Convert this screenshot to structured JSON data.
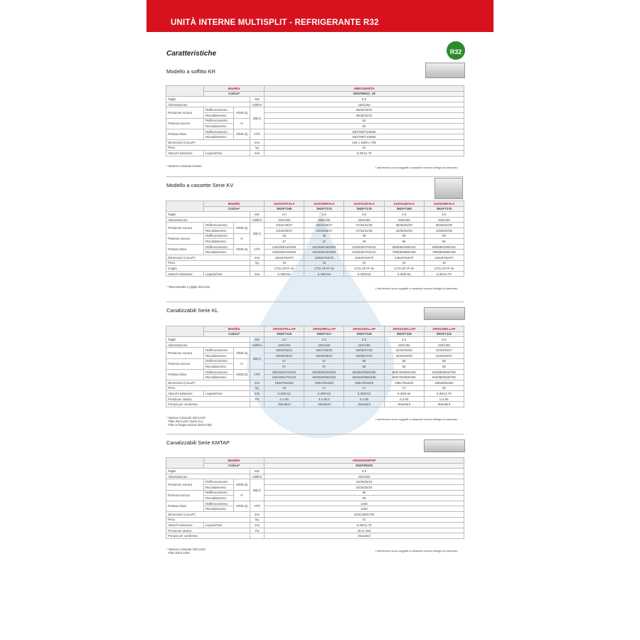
{
  "header": {
    "title": "UNITÀ INTERNE MULTISPLIT - REFRIGERANTE R32"
  },
  "subtitle": "Caratteristiche",
  "badge": "R32",
  "disclaimer": "I dati tecnici sono soggetti a variazioni senza obbligo di preavviso",
  "labels": {
    "modello": "Modello",
    "codice": "Codice*"
  },
  "sections": [
    {
      "title": "Modello a soffitto KR",
      "models": [
        "ABEG18KRTA"
      ],
      "codes": [
        "3NGF85031_18"
      ],
      "rows": [
        {
          "label": "Taglie",
          "unit": "kW",
          "values": [
            "5.0"
          ]
        },
        {
          "label": "Alimentazione",
          "unit": "V/Ø/Hz",
          "values": [
            "230/1/50"
          ]
        },
        {
          "label": "Pressione sonora",
          "mode": "H/M/L/Q",
          "unit": "dB(A)",
          "subs": [
            {
              "sub": "Raffrescamento",
              "values": [
                "38/36/33/31"
              ]
            },
            {
              "sub": "Riscaldamento",
              "values": [
                "38/36/33/31"
              ]
            }
          ]
        },
        {
          "label": "Potenza sonora",
          "mode": "H",
          "unit": "",
          "subs": [
            {
              "sub": "Raffrescamento",
              "values": [
                "53"
              ]
            },
            {
              "sub": "Riscaldamento",
              "values": [
                "53"
              ]
            }
          ]
        },
        {
          "label": "Portata d'aria",
          "mode": "H/M/L/Q",
          "unit": "m³/h",
          "subs": [
            {
              "sub": "Raffrescamento",
              "values": [
                "840/790/710/650"
              ]
            },
            {
              "sub": "Riscaldamento",
              "values": [
                "840/790/710/650"
              ]
            }
          ]
        },
        {
          "label": "Dimensioni (AxLxP)",
          "unit": "mm",
          "values": [
            "235 x 1660 x 705"
          ]
        },
        {
          "label": "Peso",
          "unit": "kg",
          "values": [
            "24"
          ]
        },
        {
          "label": "Attacchi tubazioni",
          "sub": "Liquido/Gas",
          "unit": "mm",
          "values": [
            "6.35/12.70"
          ]
        }
      ],
      "note": "* Nessun comando incluso"
    },
    {
      "title": "Modello a cassette Serie KV",
      "models": [
        "AUXG07KVLA",
        "AUXG09KVLA",
        "AUXG12KVLA",
        "AUXG14KVLA",
        "AUXG18KVLA"
      ],
      "codes": [
        "3NGF7165",
        "3NGF7170",
        "3NGF7175",
        "3NGF7180",
        "3NGF7275"
      ],
      "rows": [
        {
          "label": "Taglie",
          "unit": "kW",
          "values": [
            "2.0",
            "2.5",
            "3.5",
            "4.0",
            "5.0"
          ]
        },
        {
          "label": "Alimentazione",
          "unit": "V/Ø/Hz",
          "values": [
            "230/1/50",
            "230/1/50",
            "230/1/50",
            "230/1/50",
            "230/1/50"
          ]
        },
        {
          "label": "Pressione sonora",
          "mode": "H/M/L/Q",
          "unit": "dB(A)",
          "subs": [
            {
              "sub": "Raffrescamento",
              "values": [
                "33/31/29/27",
                "33/31/29/27",
                "37/34/31/28",
                "38/35/32/29",
                "36/35/32/29"
              ]
            },
            {
              "sub": "Riscaldamento",
              "values": [
                "34/32/29/27",
                "34/32/29/27",
                "37/34/31/28",
                "43/38/34/30",
                "43/38/34/30"
              ]
            }
          ]
        },
        {
          "label": "Potenza sonora",
          "mode": "H",
          "unit": "",
          "subs": [
            {
              "sub": "Raffrescamento",
              "values": [
                "46",
                "46",
                "49",
                "50",
                "50"
              ]
            },
            {
              "sub": "Riscaldamento",
              "values": [
                "47",
                "47",
                "49",
                "55",
                "55"
              ]
            }
          ]
        },
        {
          "label": "Portata d'aria",
          "mode": "H/M/L/Q",
          "unit": "m³/h",
          "subs": [
            {
              "sub": "Raffrescamento",
              "values": [
                "540/490/440/390",
                "540/490/440/390",
                "610/530/470/410",
                "680/580/490/410",
                "680/580/490/410"
              ]
            },
            {
              "sub": "Riscaldamento",
              "values": [
                "540/490/440/390",
                "540/490/440/390",
                "610/530/470/410",
                "790/680/580/450",
                "790/680/580/450"
              ]
            }
          ]
        },
        {
          "label": "Dimensioni (AxLxP)",
          "unit": "mm",
          "values": [
            "245x570x570",
            "245x570x570",
            "245x570x570",
            "245x570x570",
            "245x570x570"
          ]
        },
        {
          "label": "Peso",
          "unit": "kg",
          "values": [
            "15",
            "15",
            "15",
            "15",
            "15"
          ]
        },
        {
          "label": "Griglia",
          "unit": "",
          "values": [
            "UTG-UFYF-W",
            "UTG-UFYF-W",
            "UTG-UFYF-W",
            "UTG-UFYF-W",
            "UTG-UFYF-W"
          ]
        },
        {
          "label": "Attacchi tubazioni",
          "sub": "Liquido/Gas",
          "unit": "mm",
          "values": [
            "6.35/9.52",
            "6.35/9.52",
            "6.35/9.52",
            "6.35/9.52",
            "6.35/12.70"
          ]
        }
      ],
      "note": "* Telecomando e griglia INCLUSI"
    },
    {
      "title": "Canalizzabili Serie KL",
      "models": [
        "ARXG07KLLAP",
        "ARXG09KLLAP",
        "ARXG12KLLAP",
        "ARXG14KLLAP",
        "ARXG18KLLAP"
      ],
      "codes": [
        "3NGF7116",
        "3NGF7117",
        "3NGF7118",
        "3NGF7119",
        "3NGF7122"
      ],
      "rows": [
        {
          "label": "Taglie",
          "unit": "kW",
          "values": [
            "2.0",
            "2.5",
            "3.5",
            "4.0",
            "5.0"
          ]
        },
        {
          "label": "Alimentazione",
          "unit": "V/Ø/Hz",
          "values": [
            "230/1/50",
            "230/1/50",
            "230/1/50",
            "230/1/50",
            "230/1/50"
          ]
        },
        {
          "label": "Pressione sonora",
          "mode": "H/M/L/Q",
          "unit": "dB(A)",
          "subs": [
            {
              "sub": "Raffrescamento",
              "values": [
                "28/28/25/24",
                "28/27/26/25",
                "29/28/27/26",
                "32/30/28/26",
                "32/30/29/27"
              ]
            },
            {
              "sub": "Riscaldamento",
              "values": [
                "28/28/25/24",
                "28/26/25/24",
                "29/28/27/24",
                "32/30/28/25",
                "32/30/29/27"
              ]
            }
          ]
        },
        {
          "label": "Potenza sonora",
          "mode": "H",
          "unit": "",
          "subs": [
            {
              "sub": "Raffrescamento",
              "values": [
                "57",
                "57",
                "58",
                "60",
                "58"
              ]
            },
            {
              "sub": "Riscaldamento",
              "values": [
                "57",
                "57",
                "58",
                "60",
                "58"
              ]
            }
          ]
        },
        {
          "label": "Portata d'aria",
          "mode": "H/M/L/Q",
          "unit": "m³/h",
          "subs": [
            {
              "sub": "Raffrescamento",
              "values": [
                "550/490/470/440",
                "600/550/500/450",
                "650/600/550/480",
                "800/700/660/460",
                "940/880/820/750"
              ]
            },
            {
              "sub": "Riscaldamento",
              "values": [
                "550/490/470/440",
                "600/550/500/450",
                "650/600/550/480",
                "800/700/660/480",
                "940/880/820/750"
              ]
            }
          ]
        },
        {
          "label": "Dimensioni (AxLxP)",
          "unit": "mm",
          "values": [
            "198x700x620",
            "198x700x620",
            "198x700x620",
            "198x700x620",
            "198x900x620"
          ]
        },
        {
          "label": "Peso",
          "unit": "kg",
          "values": [
            "16",
            "17",
            "17",
            "17",
            "20"
          ]
        },
        {
          "label": "Attacchi tubazioni",
          "sub": "Liquido/Gas",
          "unit": "mm",
          "values": [
            "6.35/9.52",
            "6.35/9.52",
            "6.35/9.52",
            "6.35/9.52",
            "6.35/12.70"
          ]
        },
        {
          "label": "Pressione statica",
          "unit": "Pa",
          "values": [
            "0 a 90",
            "0 a 90.0",
            "0 a 90",
            "0 a 90",
            "0 a 90"
          ]
        },
        {
          "label": "Pompa per condensa",
          "unit": "",
          "values": [
            "Standard",
            "Standard",
            "Standard",
            "Standard",
            "Standard"
          ]
        }
      ],
      "note": "* Nessun comando INCLUSO\n  Filtro INCLUSO (Serie KL)\n  Filtro e flangia esclusi (Serie KM)"
    },
    {
      "title": "Canalizzabili Serie KMTAP",
      "models": [
        "ARXH22KMTAP"
      ],
      "codes": [
        "3NGF89226"
      ],
      "rows": [
        {
          "label": "Taglie",
          "unit": "kW",
          "values": [
            "6.0"
          ]
        },
        {
          "label": "Alimentazione",
          "unit": "V/Ø/Hz",
          "values": [
            "230/1/50"
          ]
        },
        {
          "label": "Pressione sonora",
          "mode": "H/M/L/Q",
          "unit": "dB(A)",
          "subs": [
            {
              "sub": "Raffrescamento",
              "values": [
                "32/26/25/24"
              ]
            },
            {
              "sub": "Riscaldamento",
              "values": [
                "32/26/25/24"
              ]
            }
          ]
        },
        {
          "label": "Potenza sonora",
          "mode": "H",
          "unit": "",
          "subs": [
            {
              "sub": "Raffrescamento",
              "values": [
                "58"
              ]
            },
            {
              "sub": "Riscaldamento",
              "values": [
                "58"
              ]
            }
          ]
        },
        {
          "label": "Portata d'aria",
          "mode": "H/M/L/Q",
          "unit": "m³/h",
          "subs": [
            {
              "sub": "Raffrescamento",
              "values": [
                "1150"
              ]
            },
            {
              "sub": "Riscaldamento",
              "values": [
                "1150"
              ]
            }
          ]
        },
        {
          "label": "Dimensioni (AxLxP)",
          "unit": "mm",
          "values": [
            "240x1000x700"
          ]
        },
        {
          "label": "Peso",
          "unit": "kg",
          "values": [
            "31"
          ]
        },
        {
          "label": "Attacchi tubazioni",
          "sub": "Liquido/Gas",
          "unit": "mm",
          "values": [
            "6.35/12.70"
          ]
        },
        {
          "label": "Pressione statica",
          "unit": "Pa",
          "values": [
            "30 to 150"
          ]
        },
        {
          "label": "Pompa per condensa",
          "unit": "",
          "values": [
            "Standard"
          ]
        }
      ],
      "note": "* Nessun comando INCLUSO\n  Filtro ESCLUSO"
    }
  ]
}
